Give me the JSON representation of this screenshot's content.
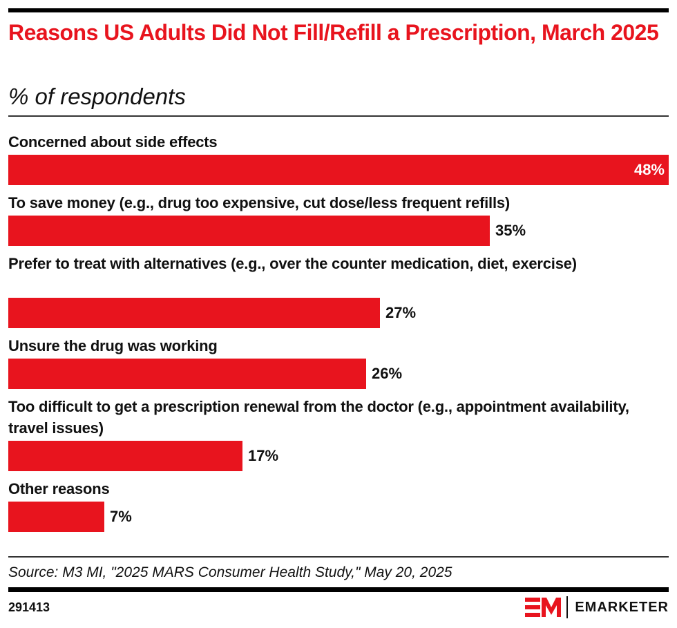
{
  "header": {
    "title": "Reasons US Adults Did Not Fill/Refill a Prescription, March 2025",
    "subtitle": "% of respondents"
  },
  "colors": {
    "accent": "#e8141e",
    "text": "#111111"
  },
  "chart_data": {
    "type": "bar",
    "orientation": "horizontal",
    "title": "Reasons US Adults Did Not Fill/Refill a Prescription, March 2025",
    "subtitle": "% of respondents",
    "xlabel": "",
    "ylabel": "",
    "categories": [
      "Concerned about side effects",
      "To save money (e.g., drug too expensive, cut dose/less frequent refills)",
      "Prefer to treat with alternatives (e.g., over the counter medication, diet, exercise)",
      "Unsure the drug was working",
      "Too difficult to get a prescription renewal from the doctor (e.g., appointment availability, travel issues)",
      "Other reasons"
    ],
    "values": [
      48,
      35,
      27,
      26,
      17,
      7
    ],
    "value_labels": [
      "48%",
      "35%",
      "27%",
      "26%",
      "17%",
      "7%"
    ],
    "xlim": [
      0,
      48
    ],
    "grid": false,
    "legend": "none"
  },
  "footer": {
    "source": "Source: M3 MI, \"2025 MARS Consumer Health Study,\" May 20, 2025",
    "chart_id": "291413",
    "brand": "EMARKETER",
    "logo_icon": "em-logo-icon"
  }
}
